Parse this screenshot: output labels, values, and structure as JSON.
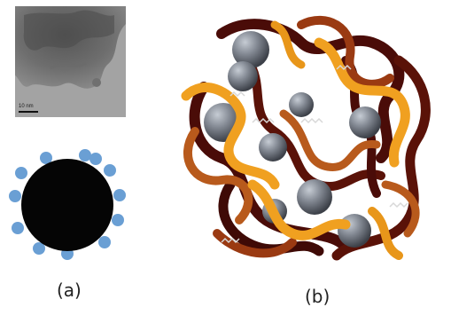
{
  "panels": {
    "a": {
      "label": "(a)",
      "micrograph": {
        "scale_bar_text": "10 nm"
      },
      "schematic": {
        "core_color": "#050505",
        "ligand_color": "#6a9fd4",
        "ligand_count": 12
      }
    },
    "b": {
      "label": "(b)",
      "chain_colors": [
        "#4a0c08",
        "#7a1f10",
        "#b85a1c",
        "#f0a020"
      ],
      "sphere_color": "#767c86"
    }
  }
}
